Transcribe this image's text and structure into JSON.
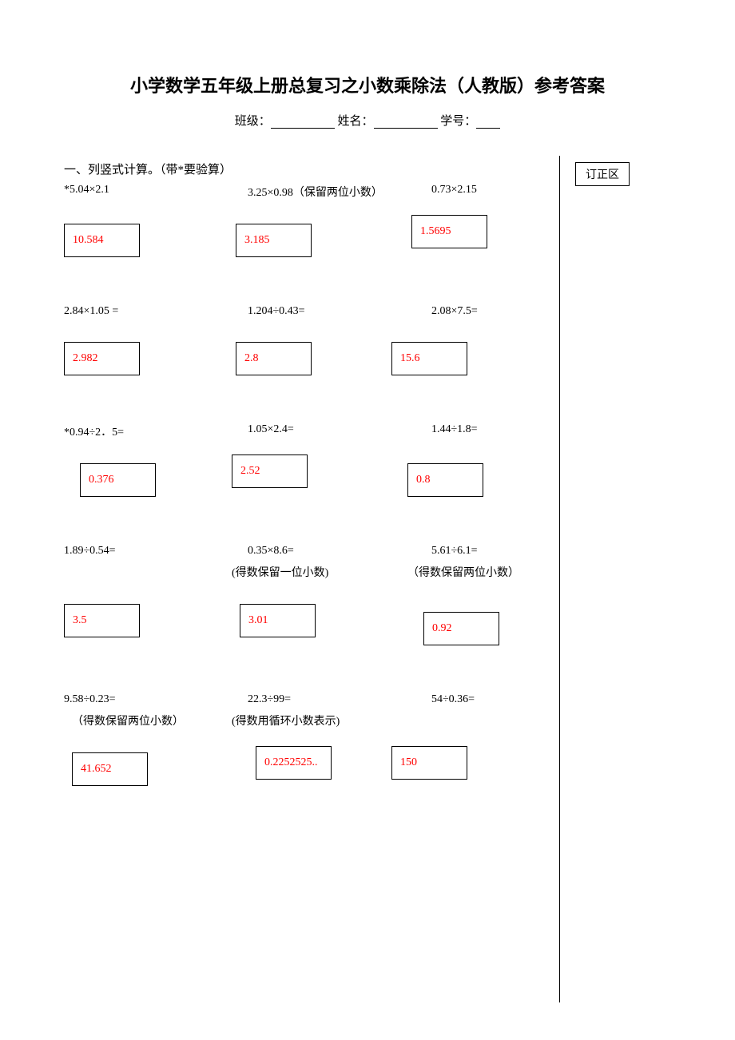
{
  "title": "小学数学五年级上册总复习之小数乘除法（人教版）参考答案",
  "info": {
    "class_label": "班级：",
    "name_label": "姓名：",
    "id_label": "学号："
  },
  "correction_label": "订正区",
  "section_heading": "一、列竖式计算。（带*要验算）",
  "rows": [
    {
      "problems": [
        "*5.04×2.1",
        "3.25×0.98（保留两位小数）",
        "0.73×2.15"
      ],
      "notes": [
        "",
        "",
        ""
      ],
      "answers": [
        "10.584",
        "3.185",
        "1.5695"
      ],
      "answer_offsets": [
        0,
        35,
        25
      ],
      "answer_top_offsets": [
        0,
        0,
        -15
      ]
    },
    {
      "problems": [
        "2.84×1.05 =",
        "1.204÷0.43=",
        "2.08×7.5="
      ],
      "notes": [
        "",
        "",
        ""
      ],
      "answers": [
        "2.982",
        "2.8",
        "15.6"
      ],
      "answer_offsets": [
        0,
        35,
        0
      ],
      "answer_top_offsets": [
        0,
        0,
        0
      ]
    },
    {
      "problems": [
        "*0.94÷2．5=",
        "1.05×2.4=",
        "1.44÷1.8="
      ],
      "notes": [
        "",
        "",
        ""
      ],
      "answers": [
        "0.376",
        "2.52",
        "0.8"
      ],
      "answer_offsets": [
        20,
        30,
        20
      ],
      "answer_top_offsets": [
        0,
        -12,
        0
      ]
    },
    {
      "problems": [
        "1.89÷0.54=",
        "0.35×8.6=",
        "5.61÷6.1="
      ],
      "notes": [
        "",
        "(得数保留一位小数)",
        "（得数保留两位小数）"
      ],
      "answers": [
        "3.5",
        "3.01",
        "0.92"
      ],
      "answer_offsets": [
        0,
        40,
        40
      ],
      "answer_top_offsets": [
        0,
        0,
        10
      ]
    },
    {
      "problems": [
        "9.58÷0.23=",
        "22.3÷99=",
        "54÷0.36="
      ],
      "notes": [
        "（得数保留两位小数）",
        "(得数用循环小数表示)",
        ""
      ],
      "answers": [
        "41.652",
        "0.2252525..",
        "150"
      ],
      "answer_offsets": [
        10,
        60,
        0
      ],
      "answer_top_offsets": [
        0,
        -8,
        -8
      ]
    }
  ],
  "colors": {
    "answer_color": "#ff0000",
    "text_color": "#000000",
    "border_color": "#000000",
    "background": "#ffffff"
  },
  "problem_col_offsets": [
    0,
    50,
    50
  ]
}
